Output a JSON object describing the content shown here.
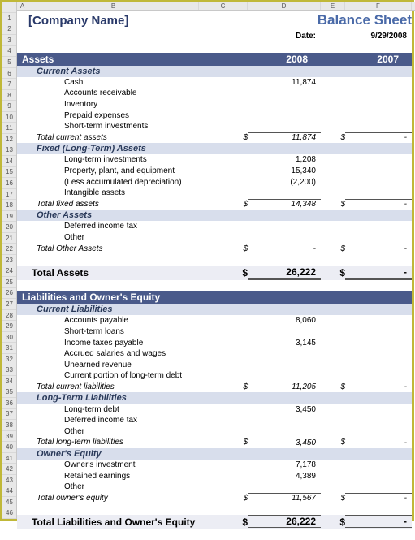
{
  "columns": [
    "A",
    "B",
    "C",
    "D",
    "E",
    "F"
  ],
  "rowcount": 46,
  "header": {
    "company": "[Company Name]",
    "title": "Balance Sheet",
    "date_label": "Date:",
    "date_value": "9/29/2008"
  },
  "section_assets": {
    "title": "Assets",
    "year1": "2008",
    "year2": "2007",
    "groups": {
      "current": {
        "label": "Current Assets",
        "items": [
          {
            "label": "Cash",
            "v1": "11,874"
          },
          {
            "label": "Accounts receivable"
          },
          {
            "label": "Inventory"
          },
          {
            "label": "Prepaid expenses"
          },
          {
            "label": "Short-term investments"
          }
        ],
        "total_label": "Total current assets",
        "cur": "$",
        "v1": "11,874",
        "cur2": "$",
        "v2": "-"
      },
      "fixed": {
        "label": "Fixed (Long-Term) Assets",
        "items": [
          {
            "label": "Long-term investments",
            "v1": "1,208"
          },
          {
            "label": "Property, plant, and equipment",
            "v1": "15,340"
          },
          {
            "label": "(Less accumulated depreciation)",
            "v1": "(2,200)"
          },
          {
            "label": "Intangible assets"
          }
        ],
        "total_label": "Total fixed assets",
        "cur": "$",
        "v1": "14,348",
        "cur2": "$",
        "v2": "-"
      },
      "other": {
        "label": "Other Assets",
        "items": [
          {
            "label": "Deferred income tax"
          },
          {
            "label": "Other"
          }
        ],
        "total_label": "Total Other Assets",
        "cur": "$",
        "v1": "-",
        "cur2": "$",
        "v2": "-"
      }
    },
    "total": {
      "label": "Total Assets",
      "cur": "$",
      "v1": "26,222",
      "cur2": "$",
      "v2": "-"
    }
  },
  "section_liab": {
    "title": "Liabilities and Owner's Equity",
    "groups": {
      "current": {
        "label": "Current Liabilities",
        "items": [
          {
            "label": "Accounts payable",
            "v1": "8,060"
          },
          {
            "label": "Short-term loans"
          },
          {
            "label": "Income taxes payable",
            "v1": "3,145"
          },
          {
            "label": "Accrued salaries and wages"
          },
          {
            "label": "Unearned revenue"
          },
          {
            "label": "Current portion of long-term debt"
          }
        ],
        "total_label": "Total current liabilities",
        "cur": "$",
        "v1": "11,205",
        "cur2": "$",
        "v2": "-"
      },
      "longterm": {
        "label": "Long-Term Liabilities",
        "items": [
          {
            "label": "Long-term debt",
            "v1": "3,450"
          },
          {
            "label": "Deferred income tax"
          },
          {
            "label": "Other"
          }
        ],
        "total_label": "Total long-term liabilities",
        "cur": "$",
        "v1": "3,450",
        "cur2": "$",
        "v2": "-"
      },
      "equity": {
        "label": "Owner's Equity",
        "items": [
          {
            "label": "Owner's investment",
            "v1": "7,178"
          },
          {
            "label": "Retained earnings",
            "v1": "4,389"
          },
          {
            "label": "Other"
          }
        ],
        "total_label": "Total owner's equity",
        "cur": "$",
        "v1": "11,567",
        "cur2": "$",
        "v2": "-"
      }
    },
    "total": {
      "label": "Total Liabilities and Owner's Equity",
      "cur": "$",
      "v1": "26,222",
      "cur2": "$",
      "v2": "-"
    }
  },
  "style": {
    "section_bg": "#4a5a8a",
    "section_fg": "#ffffff",
    "subhdr_bg": "#d8deec",
    "total_bg": "#ecedf4",
    "title_color": "#4a6aa8",
    "border": "#c0b838"
  }
}
